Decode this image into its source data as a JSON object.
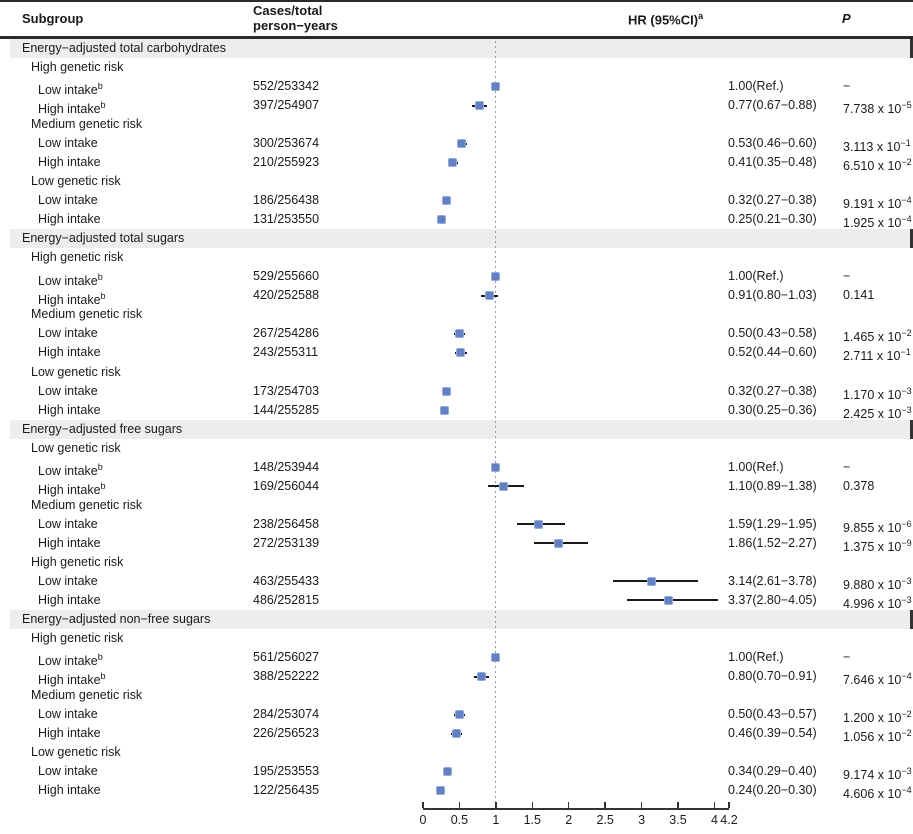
{
  "header": {
    "subgroup": "Subgroup",
    "cases_line1": "Cases/total",
    "cases_line2": "person−years",
    "hr_label": "HR (95%CI)",
    "hr_sup": "a",
    "p_label": "P"
  },
  "colors": {
    "marker_fill": "#6181c3",
    "marker_halo": "#93a9d8",
    "ci_line": "#1a1a1a",
    "section_band": "#ebeeeb",
    "dashed_ref_line": "#9a9a9a",
    "rule": "#2a2a2a"
  },
  "chart_data": {
    "type": "scatter",
    "title": "",
    "xlabel": "",
    "x_axis": {
      "range": [
        0,
        4.2
      ],
      "ref_line": 1.0,
      "tick_values": [
        0,
        0.5,
        1,
        1.5,
        2,
        2.5,
        3,
        3.5,
        4,
        4.2
      ],
      "tick_labels": [
        "0",
        "0.5",
        "1",
        "1.5",
        "2",
        "2.5",
        "3",
        "3.5",
        "4",
        "4.2"
      ]
    },
    "sections": [
      {
        "title": "Energy−adjusted total carbohydrates",
        "groups": [
          {
            "label": "High genetic risk",
            "rows": [
              {
                "label": "Low intake",
                "sup": "b",
                "cases": "552/253342",
                "hr_text": "1.00(Ref.)",
                "hr": 1.0,
                "lo": null,
                "hi": null,
                "p": {
                  "text": "−"
                }
              },
              {
                "label": "High intake",
                "sup": "b",
                "cases": "397/254907",
                "hr_text": "0.77(0.67−0.88)",
                "hr": 0.77,
                "lo": 0.67,
                "hi": 0.88,
                "p": {
                  "mantissa": "7.738",
                  "exponent": "−5"
                }
              }
            ]
          },
          {
            "label": "Medium genetic risk",
            "rows": [
              {
                "label": "Low intake",
                "sup": "",
                "cases": "300/253674",
                "hr_text": "0.53(0.46−0.60)",
                "hr": 0.53,
                "lo": 0.46,
                "hi": 0.6,
                "p": {
                  "mantissa": "3.113",
                  "exponent": "−1"
                }
              },
              {
                "label": "High intake",
                "sup": "",
                "cases": "210/255923",
                "hr_text": "0.41(0.35−0.48)",
                "hr": 0.41,
                "lo": 0.35,
                "hi": 0.48,
                "p": {
                  "mantissa": "6.510",
                  "exponent": "−2"
                }
              }
            ]
          },
          {
            "label": "Low genetic risk",
            "rows": [
              {
                "label": "Low intake",
                "sup": "",
                "cases": "186/256438",
                "hr_text": "0.32(0.27−0.38)",
                "hr": 0.32,
                "lo": 0.27,
                "hi": 0.38,
                "p": {
                  "mantissa": "9.191",
                  "exponent": "−4"
                }
              },
              {
                "label": "High intake",
                "sup": "",
                "cases": "131/253550",
                "hr_text": "0.25(0.21−0.30)",
                "hr": 0.25,
                "lo": 0.21,
                "hi": 0.3,
                "p": {
                  "mantissa": "1.925",
                  "exponent": "−4"
                }
              }
            ]
          }
        ]
      },
      {
        "title": "Energy−adjusted total sugars",
        "groups": [
          {
            "label": "High genetic risk",
            "rows": [
              {
                "label": "Low intake",
                "sup": "b",
                "cases": "529/255660",
                "hr_text": "1.00(Ref.)",
                "hr": 1.0,
                "lo": null,
                "hi": null,
                "p": {
                  "text": "−"
                }
              },
              {
                "label": "High intake",
                "sup": "b",
                "cases": "420/252588",
                "hr_text": "0.91(0.80−1.03)",
                "hr": 0.91,
                "lo": 0.8,
                "hi": 1.03,
                "p": {
                  "text": "0.141"
                }
              }
            ]
          },
          {
            "label": "Medium genetic risk",
            "rows": [
              {
                "label": "Low intake",
                "sup": "",
                "cases": "267/254286",
                "hr_text": "0.50(0.43−0.58)",
                "hr": 0.5,
                "lo": 0.43,
                "hi": 0.58,
                "p": {
                  "mantissa": "1.465",
                  "exponent": "−2"
                }
              },
              {
                "label": "High intake",
                "sup": "",
                "cases": "243/255311",
                "hr_text": "0.52(0.44−0.60)",
                "hr": 0.52,
                "lo": 0.44,
                "hi": 0.6,
                "p": {
                  "mantissa": "2.711",
                  "exponent": "−1"
                }
              }
            ]
          },
          {
            "label": "Low genetic risk",
            "rows": [
              {
                "label": "Low intake",
                "sup": "",
                "cases": "173/254703",
                "hr_text": "0.32(0.27−0.38)",
                "hr": 0.32,
                "lo": 0.27,
                "hi": 0.38,
                "p": {
                  "mantissa": "1.170",
                  "exponent": "−3"
                }
              },
              {
                "label": "High intake",
                "sup": "",
                "cases": "144/255285",
                "hr_text": "0.30(0.25−0.36)",
                "hr": 0.3,
                "lo": 0.25,
                "hi": 0.36,
                "p": {
                  "mantissa": "2.425",
                  "exponent": "−3"
                }
              }
            ]
          }
        ]
      },
      {
        "title": "Energy−adjusted free sugars",
        "groups": [
          {
            "label": "Low genetic risk",
            "rows": [
              {
                "label": "Low intake",
                "sup": "b",
                "cases": "148/253944",
                "hr_text": "1.00(Ref.)",
                "hr": 1.0,
                "lo": null,
                "hi": null,
                "p": {
                  "text": "−"
                }
              },
              {
                "label": "High intake",
                "sup": "b",
                "cases": "169/256044",
                "hr_text": "1.10(0.89−1.38)",
                "hr": 1.1,
                "lo": 0.89,
                "hi": 1.38,
                "p": {
                  "text": "0.378"
                }
              }
            ]
          },
          {
            "label": "Medium genetic risk",
            "rows": [
              {
                "label": "Low intake",
                "sup": "",
                "cases": "238/256458",
                "hr_text": "1.59(1.29−1.95)",
                "hr": 1.59,
                "lo": 1.29,
                "hi": 1.95,
                "p": {
                  "mantissa": "9.855",
                  "exponent": "−6"
                }
              },
              {
                "label": "High intake",
                "sup": "",
                "cases": "272/253139",
                "hr_text": "1.86(1.52−2.27)",
                "hr": 1.86,
                "lo": 1.52,
                "hi": 2.27,
                "p": {
                  "mantissa": "1.375",
                  "exponent": "−9"
                }
              }
            ]
          },
          {
            "label": "High genetic risk",
            "rows": [
              {
                "label": "Low intake",
                "sup": "",
                "cases": "463/255433",
                "hr_text": "3.14(2.61−3.78)",
                "hr": 3.14,
                "lo": 2.61,
                "hi": 3.78,
                "p": {
                  "mantissa": "9.880",
                  "exponent": "−3"
                }
              },
              {
                "label": "High intake",
                "sup": "",
                "cases": "486/252815",
                "hr_text": "3.37(2.80−4.05)",
                "hr": 3.37,
                "lo": 2.8,
                "hi": 4.05,
                "p": {
                  "mantissa": "4.996",
                  "exponent": "−3"
                }
              }
            ]
          }
        ]
      },
      {
        "title": "Energy−adjusted non−free sugars",
        "groups": [
          {
            "label": "High genetic risk",
            "rows": [
              {
                "label": "Low intake",
                "sup": "b",
                "cases": "561/256027",
                "hr_text": "1.00(Ref.)",
                "hr": 1.0,
                "lo": null,
                "hi": null,
                "p": {
                  "text": "−"
                }
              },
              {
                "label": "High intake",
                "sup": "b",
                "cases": "388/252222",
                "hr_text": "0.80(0.70−0.91)",
                "hr": 0.8,
                "lo": 0.7,
                "hi": 0.91,
                "p": {
                  "mantissa": "7.646",
                  "exponent": "−4"
                }
              }
            ]
          },
          {
            "label": "Medium genetic risk",
            "rows": [
              {
                "label": "Low intake",
                "sup": "",
                "cases": "284/253074",
                "hr_text": "0.50(0.43−0.57)",
                "hr": 0.5,
                "lo": 0.43,
                "hi": 0.57,
                "p": {
                  "mantissa": "1.200",
                  "exponent": "−2"
                }
              },
              {
                "label": "High intake",
                "sup": "",
                "cases": "226/256523",
                "hr_text": "0.46(0.39−0.54)",
                "hr": 0.46,
                "lo": 0.39,
                "hi": 0.54,
                "p": {
                  "mantissa": "1.056",
                  "exponent": "−2"
                }
              }
            ]
          },
          {
            "label": "Low genetic risk",
            "rows": [
              {
                "label": "Low intake",
                "sup": "",
                "cases": "195/253553",
                "hr_text": "0.34(0.29−0.40)",
                "hr": 0.34,
                "lo": 0.29,
                "hi": 0.4,
                "p": {
                  "mantissa": "9.174",
                  "exponent": "−3"
                }
              },
              {
                "label": "High intake",
                "sup": "",
                "cases": "122/256435",
                "hr_text": "0.24(0.20−0.30)",
                "hr": 0.24,
                "lo": 0.2,
                "hi": 0.3,
                "p": {
                  "mantissa": "4.606",
                  "exponent": "−4"
                }
              }
            ]
          }
        ]
      }
    ]
  }
}
